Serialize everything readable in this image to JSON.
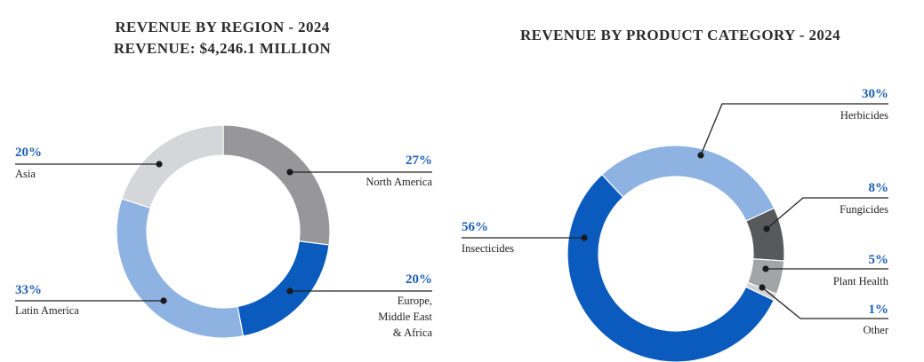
{
  "chart_data": [
    {
      "type": "pie",
      "variant": "donut",
      "title": "REVENUE BY REGION - 2024",
      "subtitle": "REVENUE: $4,246.1 MILLION",
      "slices": [
        {
          "label": "North America",
          "value": 27,
          "value_label": "27%",
          "color": "#97979a"
        },
        {
          "label_lines": [
            "Europe,",
            "Middle East",
            "& Africa"
          ],
          "value": 20,
          "value_label": "20%",
          "color": "#0a5bbd"
        },
        {
          "label": "Latin America",
          "value": 33,
          "value_label": "33%",
          "color": "#8eb3e2"
        },
        {
          "label": "Asia",
          "value": 20,
          "value_label": "20%",
          "color": "#d4d6d9"
        }
      ]
    },
    {
      "type": "pie",
      "variant": "donut",
      "title": "REVENUE BY PRODUCT CATEGORY - 2024",
      "slices": [
        {
          "label": "Herbicides",
          "value": 30,
          "value_label": "30%",
          "color": "#8eb3e2"
        },
        {
          "label": "Fungicides",
          "value": 8,
          "value_label": "8%",
          "color": "#58595b"
        },
        {
          "label": "Plant Health",
          "value": 5,
          "value_label": "5%",
          "color": "#a3a4a6"
        },
        {
          "label": "Other",
          "value": 1,
          "value_label": "1%",
          "color": "#d0d2d4"
        },
        {
          "label": "Insecticides",
          "value": 56,
          "value_label": "56%",
          "color": "#0a5bbd"
        }
      ]
    }
  ]
}
